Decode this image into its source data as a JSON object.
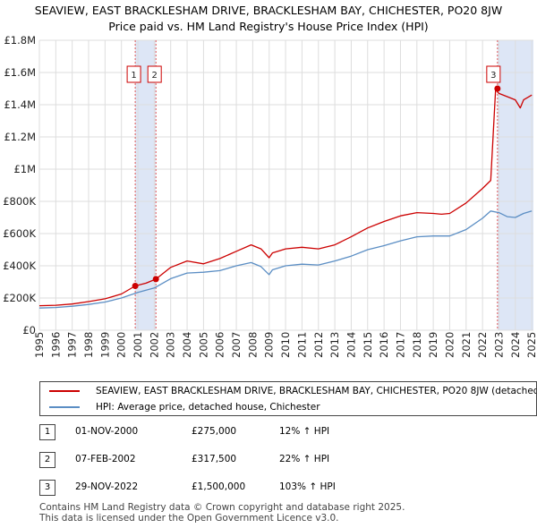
{
  "chart_data": {
    "type": "line",
    "title": "SEAVIEW, EAST BRACKLESHAM DRIVE, BRACKLESHAM BAY, CHICHESTER, PO20 8JW",
    "subtitle": "Price paid vs. HM Land Registry's House Price Index (HPI)",
    "xlim": [
      1995,
      2025.1
    ],
    "ylim": [
      0,
      1800000
    ],
    "y_ticks": [
      {
        "value": 0,
        "label": "£0"
      },
      {
        "value": 200000,
        "label": "£200K"
      },
      {
        "value": 400000,
        "label": "£400K"
      },
      {
        "value": 600000,
        "label": "£600K"
      },
      {
        "value": 800000,
        "label": "£800K"
      },
      {
        "value": 1000000,
        "label": "£1M"
      },
      {
        "value": 1200000,
        "label": "£1.2M"
      },
      {
        "value": 1400000,
        "label": "£1.4M"
      },
      {
        "value": 1600000,
        "label": "£1.6M"
      },
      {
        "value": 1800000,
        "label": "£1.8M"
      }
    ],
    "x_ticks": [
      "1995",
      "1996",
      "1997",
      "1998",
      "1999",
      "2000",
      "2001",
      "2002",
      "2003",
      "2004",
      "2005",
      "2006",
      "2007",
      "2008",
      "2009",
      "2010",
      "2011",
      "2012",
      "2013",
      "2014",
      "2015",
      "2016",
      "2017",
      "2018",
      "2019",
      "2020",
      "2021",
      "2022",
      "2023",
      "2024",
      "2025"
    ],
    "grid": true,
    "series": [
      {
        "name": "SEAVIEW, EAST BRACKLESHAM DRIVE, BRACKLESHAM BAY, CHICHESTER, PO20 8JW (detached house)",
        "color": "#cc0000",
        "x": [
          1995.0,
          1996.0,
          1997.0,
          1998.0,
          1999.0,
          2000.0,
          2000.84,
          2001.5,
          2002.1,
          2003.0,
          2004.0,
          2005.0,
          2006.0,
          2007.0,
          2007.9,
          2008.5,
          2009.0,
          2009.2,
          2010.0,
          2011.0,
          2012.0,
          2013.0,
          2014.0,
          2015.0,
          2016.0,
          2017.0,
          2018.0,
          2019.0,
          2019.5,
          2020.0,
          2021.0,
          2022.0,
          2022.5,
          2022.8,
          2022.9,
          2023.0,
          2023.5,
          2024.0,
          2024.3,
          2024.5,
          2025.0
        ],
        "values": [
          152000,
          155000,
          163000,
          178000,
          195000,
          225000,
          275000,
          292000,
          317500,
          390000,
          430000,
          412000,
          445000,
          490000,
          530000,
          505000,
          450000,
          480000,
          505000,
          515000,
          505000,
          530000,
          580000,
          635000,
          675000,
          710000,
          730000,
          725000,
          720000,
          725000,
          790000,
          880000,
          930000,
          1500000,
          1480000,
          1470000,
          1450000,
          1430000,
          1380000,
          1430000,
          1460000
        ]
      },
      {
        "name": "HPI: Average price, detached house, Chichester",
        "color": "#5b8ec4",
        "x": [
          1995.0,
          1996.0,
          1997.0,
          1998.0,
          1999.0,
          2000.0,
          2001.0,
          2002.0,
          2003.0,
          2004.0,
          2005.0,
          2006.0,
          2007.0,
          2007.9,
          2008.5,
          2009.0,
          2009.2,
          2010.0,
          2011.0,
          2012.0,
          2013.0,
          2014.0,
          2015.0,
          2016.0,
          2017.0,
          2018.0,
          2019.0,
          2020.0,
          2021.0,
          2022.0,
          2022.5,
          2023.0,
          2023.5,
          2024.0,
          2024.5,
          2025.0
        ],
        "values": [
          138000,
          141000,
          149000,
          160000,
          175000,
          200000,
          235000,
          262000,
          320000,
          355000,
          360000,
          370000,
          400000,
          420000,
          395000,
          345000,
          375000,
          400000,
          410000,
          405000,
          430000,
          460000,
          500000,
          525000,
          555000,
          580000,
          585000,
          585000,
          625000,
          695000,
          740000,
          730000,
          705000,
          700000,
          725000,
          740000
        ]
      }
    ],
    "sales": [
      {
        "id": "1",
        "x": 2000.84,
        "value": 275000
      },
      {
        "id": "2",
        "x": 2002.1,
        "value": 317500
      },
      {
        "id": "3",
        "x": 2022.91,
        "value": 1500000
      }
    ],
    "shaded_regions": [
      [
        2000.84,
        2002.1
      ],
      [
        2022.91,
        2025.1
      ]
    ]
  },
  "legend": {
    "property": "SEAVIEW, EAST BRACKLESHAM DRIVE, BRACKLESHAM BAY, CHICHESTER, PO20 8JW (detached house)",
    "hpi": "HPI: Average price, detached house, Chichester"
  },
  "transactions": [
    {
      "num": "1",
      "date": "01-NOV-2000",
      "price": "£275,000",
      "hpi": "12% ↑ HPI"
    },
    {
      "num": "2",
      "date": "07-FEB-2002",
      "price": "£317,500",
      "hpi": "22% ↑ HPI"
    },
    {
      "num": "3",
      "date": "29-NOV-2022",
      "price": "£1,500,000",
      "hpi": "103% ↑ HPI"
    }
  ],
  "footer": {
    "line1": "Contains HM Land Registry data © Crown copyright and database right 2025.",
    "line2": "This data is licensed under the Open Government Licence v3.0."
  }
}
